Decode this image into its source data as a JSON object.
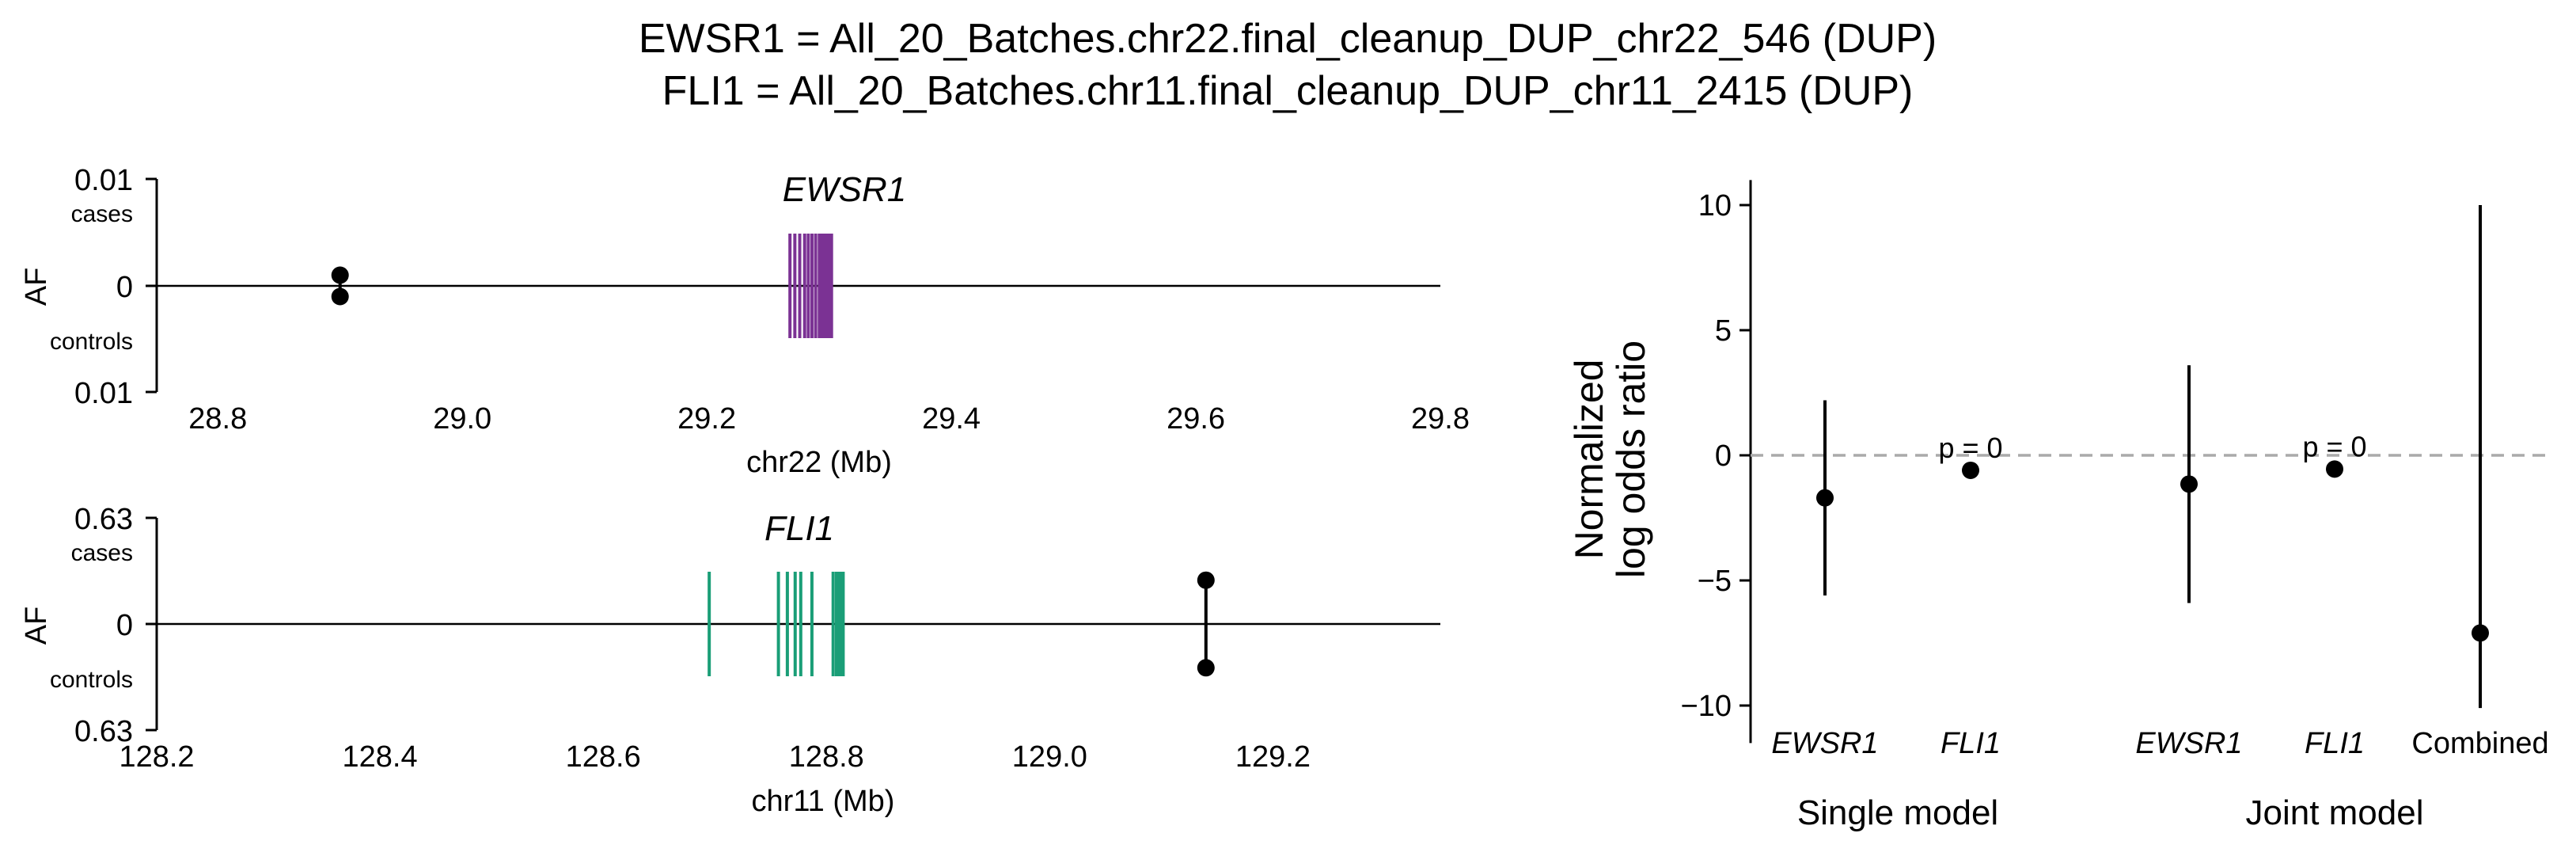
{
  "title": {
    "line1": "EWSR1 = All_20_Batches.chr22.final_cleanup_DUP_chr22_546 (DUP)",
    "line2": "FLI1 = All_20_Batches.chr11.final_cleanup_DUP_chr11_2415 (DUP)"
  },
  "chart_data": [
    {
      "type": "scatter",
      "panel": "EWSR1 locus",
      "title": "EWSR1",
      "xlabel": "chr22 (Mb)",
      "ylabel": "AF",
      "xlim": [
        28.75,
        29.8
      ],
      "xticks": [
        "28.8",
        "29.0",
        "29.2",
        "29.4",
        "29.6",
        "29.8"
      ],
      "yticks": {
        "top": "0.01",
        "middle": "0",
        "bottom": "0.01"
      },
      "ylim_af": 0.01,
      "side_labels": {
        "top": "cases",
        "bottom": "controls"
      },
      "variant": {
        "position_mb": 28.9,
        "af_cases": 0.001,
        "af_controls": 0.001
      },
      "gene_exons_mb": [
        29.268,
        29.272,
        29.276,
        29.28,
        29.283,
        29.286,
        29.289,
        29.292,
        29.294,
        29.296,
        29.298,
        29.3,
        29.302
      ],
      "gene_color": "#7b3294"
    },
    {
      "type": "scatter",
      "panel": "FLI1 locus",
      "title": "FLI1",
      "xlabel": "chr11 (Mb)",
      "ylabel": "AF",
      "xlim": [
        128.2,
        129.35
      ],
      "xticks": [
        "128.2",
        "128.4",
        "128.6",
        "128.8",
        "129.0",
        "129.2"
      ],
      "yticks": {
        "top": "0.63",
        "middle": "0",
        "bottom": "0.63"
      },
      "ylim_af": 0.63,
      "side_labels": {
        "top": "cases",
        "bottom": "controls"
      },
      "variant": {
        "position_mb": 129.14,
        "af_cases": 0.26,
        "af_controls": 0.26
      },
      "gene_exons_mb": [
        128.695,
        128.757,
        128.765,
        128.772,
        128.777,
        128.787,
        128.806,
        128.809,
        128.811,
        128.813,
        128.815
      ],
      "gene_color": "#1a9e77"
    },
    {
      "type": "scatter",
      "panel": "log odds ratios",
      "ylabel": "Normalized\nlog odds ratio",
      "ylim": [
        -11.5,
        11
      ],
      "yticks": [
        10,
        5,
        0,
        -5,
        -10
      ],
      "reference_line": 0,
      "categories": [
        "EWSR1",
        "FLI1",
        "EWSR1",
        "FLI1",
        "Combined"
      ],
      "groups": [
        {
          "label": "Single model",
          "categories": [
            0,
            1
          ]
        },
        {
          "label": "Joint model",
          "categories": [
            2,
            3,
            4
          ]
        }
      ],
      "points": [
        {
          "category": "EWSR1",
          "group": "Single model",
          "estimate": -1.7,
          "ci_low": -5.6,
          "ci_high": 2.2
        },
        {
          "category": "FLI1",
          "group": "Single model",
          "estimate": -0.6,
          "annotation": "p = 0"
        },
        {
          "category": "EWSR1",
          "group": "Joint model",
          "estimate": -1.15,
          "ci_low": -5.9,
          "ci_high": 3.6
        },
        {
          "category": "FLI1",
          "group": "Joint model",
          "estimate": -0.55,
          "annotation": "p = 0"
        },
        {
          "category": "Combined",
          "group": "Joint model",
          "estimate": -7.1,
          "ci_low": -10.1,
          "ci_high": 10.0
        }
      ]
    }
  ]
}
